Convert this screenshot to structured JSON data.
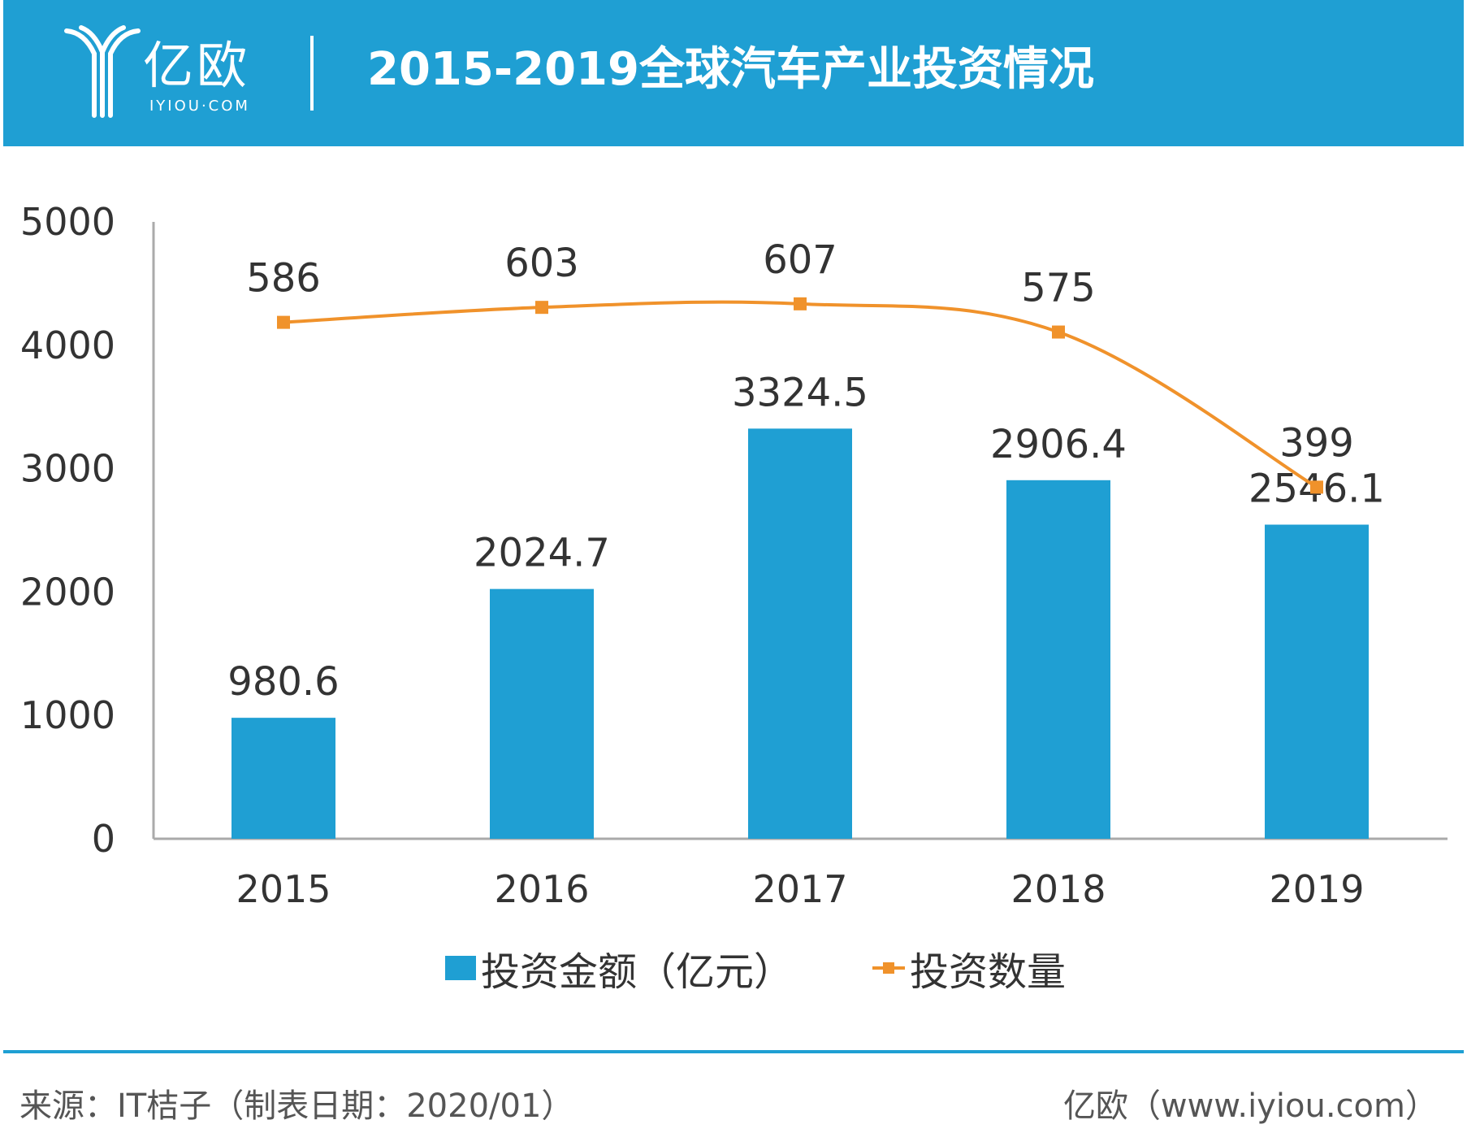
{
  "header": {
    "logo_cn": "亿欧",
    "logo_en": "IYIOU·COM",
    "title": "2015-2019全球汽车产业投资情况"
  },
  "colors": {
    "header_bg": "#1f9fd3",
    "bar": "#1f9fd3",
    "line": "#f0922b",
    "text": "#333333",
    "axis": "#aaaaaa"
  },
  "chart_data": {
    "type": "bar+line",
    "title": "2015-2019全球汽车产业投资情况",
    "categories": [
      "2015",
      "2016",
      "2017",
      "2018",
      "2019"
    ],
    "ylim": [
      0,
      5000
    ],
    "yticks": [
      "0",
      "1000",
      "2000",
      "3000",
      "4000",
      "5000"
    ],
    "grid": false,
    "legend_position": "bottom",
    "series": [
      {
        "name": "投资金额（亿元）",
        "type": "bar",
        "values": [
          980.6,
          2024.7,
          3324.5,
          2906.4,
          2546.1
        ],
        "labels": [
          "980.6",
          "2024.7",
          "3324.5",
          "2906.4",
          "2546.1"
        ]
      },
      {
        "name": "投资数量",
        "type": "line",
        "smooth": true,
        "marker": "square",
        "secondary_axis": true,
        "values": [
          586,
          603,
          607,
          575,
          399
        ],
        "labels": [
          "586",
          "603",
          "607",
          "575",
          "399"
        ]
      }
    ]
  },
  "legend": {
    "bar_label": "投资金额（亿元）",
    "line_label": "投资数量"
  },
  "footer": {
    "source": "来源：IT桔子（制表日期：2020/01）",
    "credit": "亿欧（www.iyiou.com）"
  }
}
